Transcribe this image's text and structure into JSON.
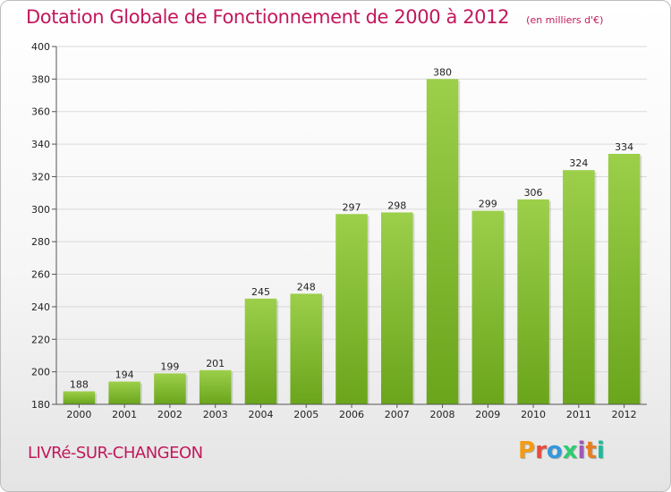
{
  "header": {
    "title": "Dotation Globale de Fonctionnement de 2000 à 2012",
    "subtitle": "(en milliers d'€)"
  },
  "footer": {
    "commune": "LIVRé-SUR-CHANGEON",
    "logo_text": "Proxiti",
    "logo_colors": [
      "#f39c12",
      "#e74c3c",
      "#3498db",
      "#2ecc71",
      "#9b59b6",
      "#e67e22",
      "#1abc9c"
    ]
  },
  "chart_data": {
    "type": "bar",
    "categories": [
      "2000",
      "2001",
      "2002",
      "2003",
      "2004",
      "2005",
      "2006",
      "2007",
      "2008",
      "2009",
      "2010",
      "2011",
      "2012"
    ],
    "values": [
      188,
      194,
      199,
      201,
      245,
      248,
      297,
      298,
      380,
      299,
      306,
      324,
      334
    ],
    "ylim": [
      180,
      400
    ],
    "yticks": [
      180,
      200,
      220,
      240,
      260,
      280,
      300,
      320,
      340,
      360,
      380,
      400
    ],
    "grid": true,
    "bar_color_top": "#9ccf4a",
    "bar_color_bottom": "#6aa51c"
  }
}
